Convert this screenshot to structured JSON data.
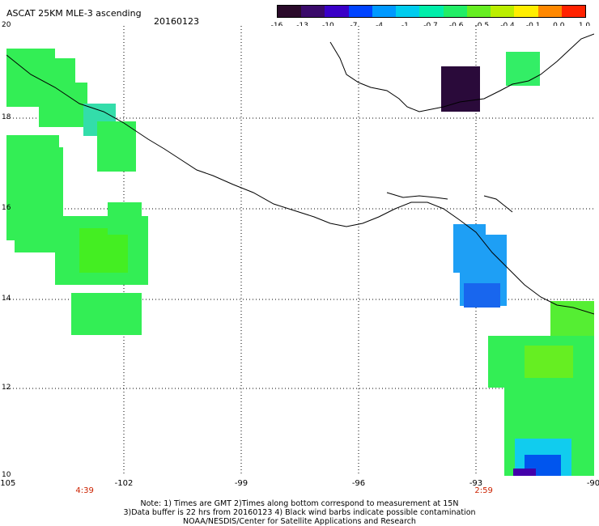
{
  "header": {
    "title": "ASCAT 25KM MLE-3 ascending",
    "date": "20160123"
  },
  "colorbar": {
    "labels": [
      "-16",
      "-13",
      "-10",
      "-7",
      "-4",
      "-1",
      "-0.7",
      "-0.6",
      "-0.5",
      "-0.4",
      "-0.1",
      "0.0",
      "1.0"
    ],
    "colors": [
      "#2a0a2a",
      "#3a0a6a",
      "#3a00c8",
      "#0044ff",
      "#0099ff",
      "#00ccee",
      "#00eeaa",
      "#22ee66",
      "#66ee22",
      "#bbee00",
      "#ffee00",
      "#ff8800",
      "#ff2200"
    ]
  },
  "map": {
    "lon_labels": [
      "-105",
      "-102",
      "-99",
      "-96",
      "-93",
      "-90"
    ],
    "lat_labels": [
      "20",
      "18",
      "16",
      "14",
      "12",
      "10"
    ],
    "times": [
      {
        "label": "4:39",
        "lon": -103
      },
      {
        "label": "2:59",
        "lon": -92.8
      }
    ]
  },
  "notes": {
    "line1": "Note: 1) Times are GMT 2)Times along bottom correspond to measurement at 15N",
    "line2": "3)Data buffer is 22 hrs from 20160123 4) Black wind barbs indicate possible contamination",
    "line3": "NOAA/NESDIS/Center for Satellite Applications and Research"
  }
}
